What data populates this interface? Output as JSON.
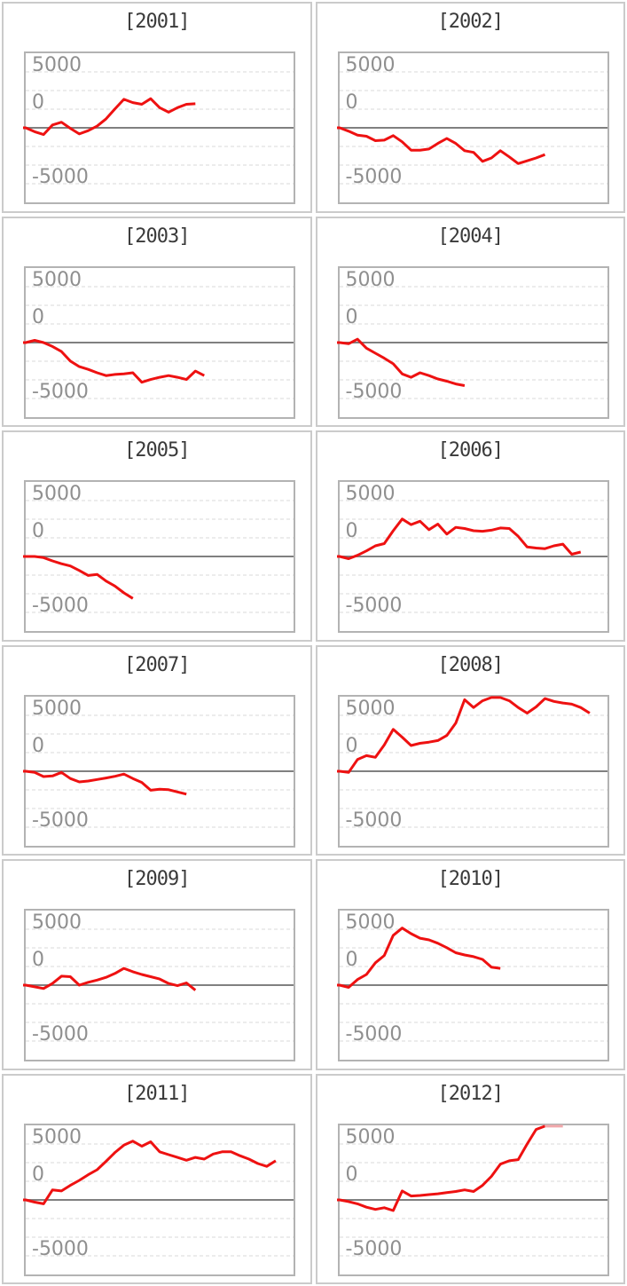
{
  "axis": {
    "tick_labels": [
      "5000",
      "0",
      "-5000"
    ],
    "tick_values": [
      5000,
      0,
      -5000
    ],
    "grid": "horizontal-dashed",
    "zero_line": "solid"
  },
  "style": {
    "line_color": "#ee1111",
    "line_color_clipped": "#f1a8ab",
    "grid_color": "#d9d9d9",
    "zero_line_color": "#808080",
    "plot_border_color": "#b3b3b3",
    "cell_border_color": "#cbcbcb",
    "title_color": "#3a3a3a",
    "tick_label_color": "#8f8f8f",
    "background": "#ffffff"
  },
  "chart_data": [
    {
      "type": "line",
      "title": "[2001]",
      "year": 2001,
      "x_slots": 31,
      "ylim": [
        -7000,
        7000
      ],
      "values": [
        0,
        -350,
        -600,
        250,
        500,
        -50,
        -550,
        -250,
        150,
        800,
        1700,
        2550,
        2250,
        2100,
        2600,
        1800,
        1400,
        1800,
        2100,
        2150
      ]
    },
    {
      "type": "line",
      "title": "[2002]",
      "year": 2002,
      "x_slots": 31,
      "ylim": [
        -7000,
        7000
      ],
      "values": [
        0,
        -300,
        -650,
        -750,
        -1150,
        -1100,
        -700,
        -1250,
        -2000,
        -2000,
        -1900,
        -1400,
        -950,
        -1400,
        -2050,
        -2200,
        -3000,
        -2700,
        -2050,
        -2600,
        -3200,
        -2950,
        -2700,
        -2400
      ]
    },
    {
      "type": "line",
      "title": "[2003]",
      "year": 2003,
      "x_slots": 31,
      "ylim": [
        -7000,
        7000
      ],
      "values": [
        0,
        200,
        0,
        -350,
        -800,
        -1650,
        -2150,
        -2400,
        -2700,
        -2950,
        -2850,
        -2800,
        -2700,
        -3550,
        -3300,
        -3100,
        -2950,
        -3100,
        -3300,
        -2550,
        -2950
      ]
    },
    {
      "type": "line",
      "title": "[2004]",
      "year": 2004,
      "x_slots": 31,
      "ylim": [
        -7000,
        7000
      ],
      "values": [
        0,
        -100,
        300,
        -500,
        -950,
        -1400,
        -1900,
        -2800,
        -3100,
        -2700,
        -2950,
        -3250,
        -3450,
        -3700,
        -3850
      ]
    },
    {
      "type": "line",
      "title": "[2005]",
      "year": 2005,
      "x_slots": 31,
      "ylim": [
        -7000,
        7000
      ],
      "values": [
        0,
        0,
        -100,
        -400,
        -650,
        -850,
        -1250,
        -1700,
        -1600,
        -2200,
        -2650,
        -3250,
        -3750
      ]
    },
    {
      "type": "line",
      "title": "[2006]",
      "year": 2006,
      "x_slots": 31,
      "ylim": [
        -7000,
        7000
      ],
      "values": [
        0,
        -200,
        100,
        500,
        950,
        1150,
        2300,
        3350,
        2850,
        3150,
        2400,
        2900,
        2000,
        2600,
        2500,
        2300,
        2250,
        2350,
        2550,
        2500,
        1800,
        850,
        750,
        700,
        950,
        1100,
        200,
        400
      ]
    },
    {
      "type": "line",
      "title": "[2007]",
      "year": 2007,
      "x_slots": 31,
      "ylim": [
        -7000,
        7000
      ],
      "values": [
        0,
        -100,
        -480,
        -420,
        -100,
        -650,
        -950,
        -870,
        -740,
        -600,
        -450,
        -250,
        -650,
        -1000,
        -1700,
        -1600,
        -1650,
        -1850,
        -2050
      ]
    },
    {
      "type": "line",
      "title": "[2008]",
      "year": 2008,
      "x_slots": 31,
      "ylim": [
        -7000,
        7000
      ],
      "values": [
        0,
        -100,
        1050,
        1400,
        1250,
        2350,
        3750,
        3050,
        2300,
        2500,
        2600,
        2750,
        3200,
        4300,
        6400,
        5700,
        6300,
        6700,
        6700,
        6300,
        5700,
        5200,
        5750,
        6500,
        6250,
        6100,
        6000,
        5700,
        5200
      ]
    },
    {
      "type": "line",
      "title": "[2009]",
      "year": 2009,
      "x_slots": 31,
      "ylim": [
        -7000,
        7000
      ],
      "values": [
        0,
        -150,
        -300,
        150,
        800,
        750,
        0,
        250,
        450,
        700,
        1050,
        1500,
        1200,
        950,
        750,
        550,
        150,
        -50,
        200,
        -450
      ]
    },
    {
      "type": "line",
      "title": "[2010]",
      "year": 2010,
      "x_slots": 31,
      "ylim": [
        -7000,
        7000
      ],
      "values": [
        0,
        -200,
        500,
        950,
        2000,
        2650,
        4450,
        5100,
        4600,
        4200,
        4050,
        3750,
        3350,
        2900,
        2700,
        2550,
        2300,
        1600,
        1500
      ]
    },
    {
      "type": "line",
      "title": "[2011]",
      "year": 2011,
      "x_slots": 31,
      "ylim": [
        -7000,
        7000
      ],
      "values": [
        0,
        -200,
        -350,
        900,
        800,
        1300,
        1750,
        2250,
        2700,
        3450,
        4250,
        4900,
        5250,
        4800,
        5200,
        4300,
        4050,
        3800,
        3550,
        3800,
        3650,
        4100,
        4300,
        4300,
        3950,
        3650,
        3250,
        3000,
        3500
      ]
    },
    {
      "type": "line",
      "title": "[2012]",
      "year": 2012,
      "x_slots": 31,
      "ylim": [
        -7000,
        7000
      ],
      "clip_fade_from": 23,
      "values": [
        0,
        -150,
        -350,
        -650,
        -850,
        -700,
        -950,
        800,
        350,
        400,
        480,
        550,
        650,
        750,
        900,
        750,
        1300,
        2100,
        3200,
        3500,
        3600,
        5000,
        6300,
        6700,
        6700,
        6700
      ]
    }
  ]
}
